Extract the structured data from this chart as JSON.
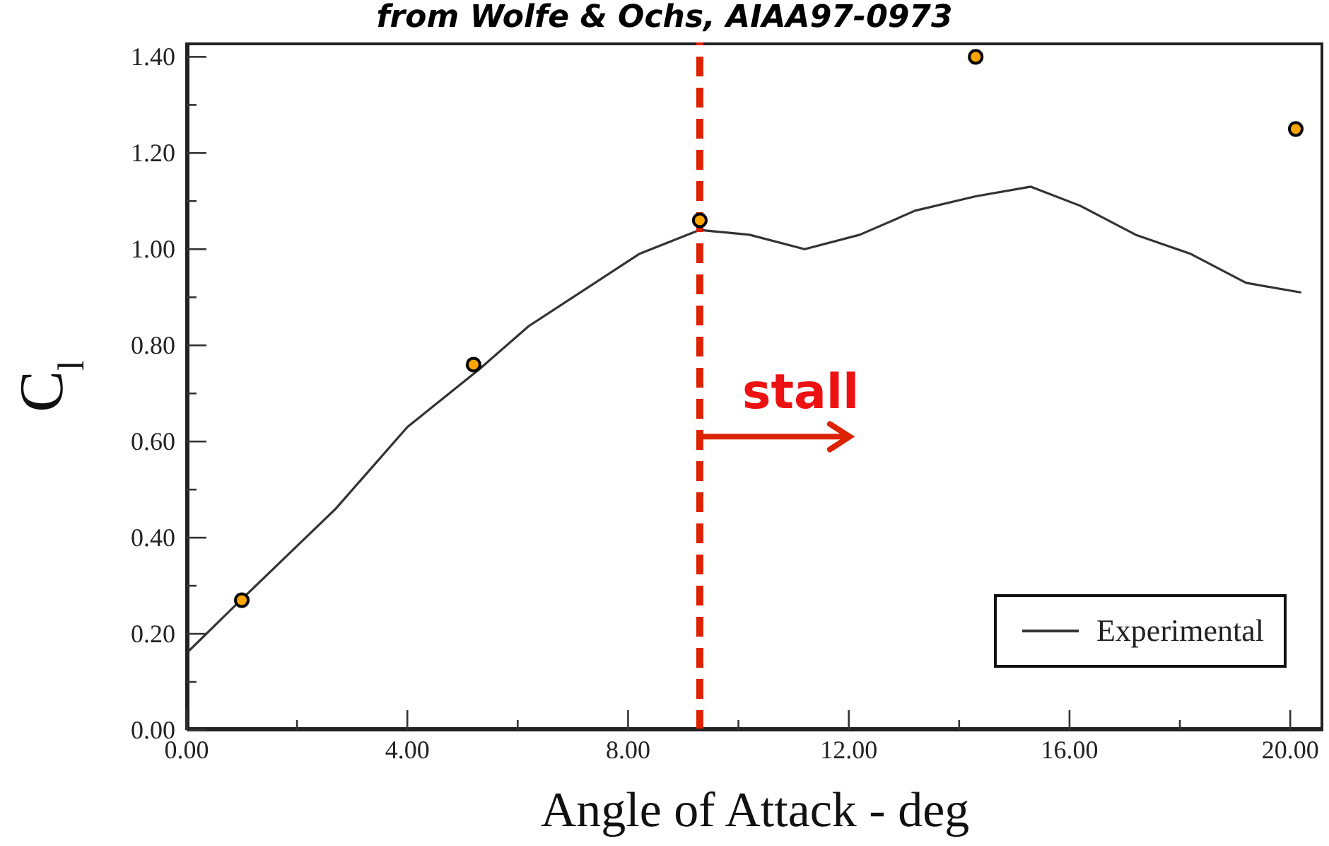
{
  "chart_data": {
    "type": "line",
    "title": "from Wolfe & Ochs, AIAA97-0973",
    "xlabel": "Angle of Attack - deg",
    "ylabel": "C$_{l}$",
    "xlim": [
      0,
      20.6
    ],
    "ylim": [
      0,
      1.43
    ],
    "xticks": [
      {
        "value": 0,
        "label": "0.00"
      },
      {
        "value": 2,
        "label": null
      },
      {
        "value": 4,
        "label": "4.00"
      },
      {
        "value": 6,
        "label": null
      },
      {
        "value": 8,
        "label": "8.00"
      },
      {
        "value": 10,
        "label": null
      },
      {
        "value": 12,
        "label": "12.00"
      },
      {
        "value": 14,
        "label": null
      },
      {
        "value": 16,
        "label": "16.00"
      },
      {
        "value": 18,
        "label": null
      },
      {
        "value": 20,
        "label": "20.00"
      }
    ],
    "yticks": [
      {
        "value": 0,
        "label": "0.00"
      },
      {
        "value": 0.1,
        "label": null
      },
      {
        "value": 0.2,
        "label": "0.20"
      },
      {
        "value": 0.3,
        "label": null
      },
      {
        "value": 0.4,
        "label": "0.40"
      },
      {
        "value": 0.5,
        "label": null
      },
      {
        "value": 0.6,
        "label": "0.60"
      },
      {
        "value": 0.7,
        "label": null
      },
      {
        "value": 0.8,
        "label": "0.80"
      },
      {
        "value": 0.9,
        "label": null
      },
      {
        "value": 1.0,
        "label": "1.00"
      },
      {
        "value": 1.1,
        "label": null
      },
      {
        "value": 1.2,
        "label": "1.20"
      },
      {
        "value": 1.3,
        "label": null
      },
      {
        "value": 1.4,
        "label": "1.40"
      }
    ],
    "series": [
      {
        "name": "Experimental",
        "color": "#333333",
        "marker": "none",
        "line_style": "solid",
        "x": [
          0,
          0.8,
          2.7,
          4.0,
          5.3,
          6.2,
          8.2,
          9.3,
          10.2,
          11.2,
          12.2,
          13.2,
          14.3,
          15.3,
          16.2,
          17.2,
          18.2,
          19.2,
          20.2
        ],
        "values": [
          0.16,
          0.25,
          0.46,
          0.63,
          0.75,
          0.84,
          0.99,
          1.04,
          1.03,
          1.0,
          1.03,
          1.08,
          1.11,
          1.13,
          1.09,
          1.03,
          0.99,
          0.93,
          0.91
        ]
      },
      {
        "type": "scatter",
        "color": "#ffa500",
        "marker": "circle",
        "x": [
          1.0,
          5.2,
          9.3,
          14.3,
          20.1
        ],
        "values": [
          0.27,
          0.76,
          1.06,
          1.4,
          1.25
        ]
      }
    ],
    "ref_lines": [
      {
        "axis": "x",
        "value": 9.3,
        "color": "#dd2200",
        "line_style": "dashed"
      }
    ],
    "annotations": [
      {
        "text": "stall",
        "x": 9.3,
        "y": 0.61
      }
    ],
    "legend": "bottom right",
    "grid": false
  }
}
